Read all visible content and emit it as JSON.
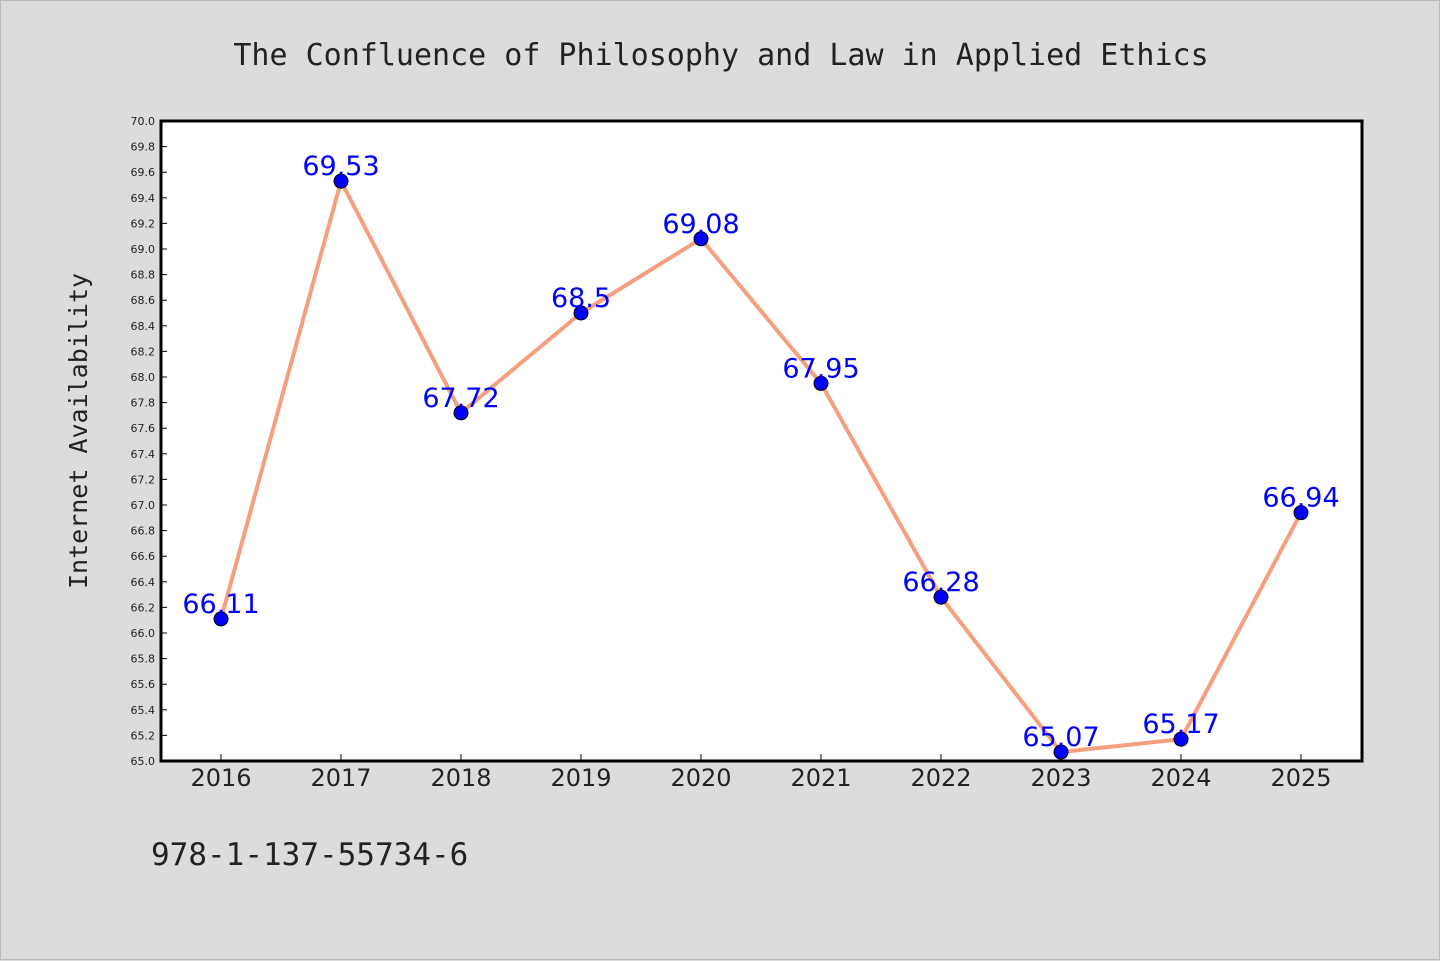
{
  "footer": {
    "text": "978-1-137-55734-6"
  },
  "colors": {
    "background": "#dcdcdc",
    "line": "#f4a07f",
    "marker": "#0000ff",
    "labels": "#0000ff"
  },
  "chart_data": {
    "type": "line",
    "title": "The Confluence of Philosophy and Law in Applied Ethics",
    "xlabel": "",
    "ylabel": "Internet Availability",
    "categories": [
      "2016",
      "2017",
      "2018",
      "2019",
      "2020",
      "2021",
      "2022",
      "2023",
      "2024",
      "2025"
    ],
    "values": [
      66.11,
      69.53,
      67.72,
      68.5,
      69.08,
      67.95,
      66.28,
      65.07,
      65.17,
      66.94
    ],
    "data_labels": [
      "66.11",
      "69.53",
      "67.72",
      "68.5",
      "69.08",
      "67.95",
      "66.28",
      "65.07",
      "65.17",
      "66.94"
    ],
    "ylim": [
      65.0,
      70.0
    ],
    "yticks": [
      "65.0",
      "65.2",
      "65.4",
      "65.6",
      "65.8",
      "66.0",
      "66.2",
      "66.4",
      "66.6",
      "66.8",
      "67.0",
      "67.2",
      "67.4",
      "67.6",
      "67.8",
      "68.0",
      "68.2",
      "68.4",
      "68.6",
      "68.8",
      "69.0",
      "69.2",
      "69.4",
      "69.6",
      "69.8",
      "70.0"
    ],
    "grid": false,
    "legend": "none"
  }
}
